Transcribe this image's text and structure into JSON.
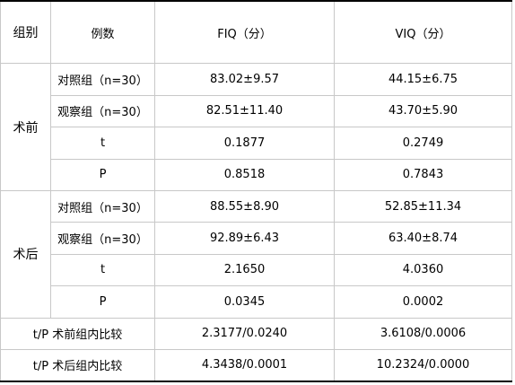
{
  "table": {
    "headers": {
      "group": "组别",
      "count": "例数",
      "fiq": "FIQ（分）",
      "viq": "VIQ（分）"
    },
    "sections": [
      {
        "name": "术前",
        "rows": [
          {
            "label": "对照组（n=30）",
            "fiq": "83.02±9.57",
            "viq": "44.15±6.75"
          },
          {
            "label": "观察组（n=30）",
            "fiq": "82.51±11.40",
            "viq": "43.70±5.90"
          },
          {
            "label": "t",
            "fiq": "0.1877",
            "viq": "0.2749"
          },
          {
            "label": "P",
            "fiq": "0.8518",
            "viq": "0.7843"
          }
        ]
      },
      {
        "name": "术后",
        "rows": [
          {
            "label": "对照组（n=30）",
            "fiq": "88.55±8.90",
            "viq": "52.85±11.34"
          },
          {
            "label": "观察组（n=30）",
            "fiq": "92.89±6.43",
            "viq": "63.40±8.74"
          },
          {
            "label": "t",
            "fiq": "2.1650",
            "viq": "4.0360"
          },
          {
            "label": "P",
            "fiq": "0.0345",
            "viq": "0.0002"
          }
        ]
      }
    ],
    "comparisons": [
      {
        "label": "t/P 术前组内比较",
        "fiq": "2.3177/0.0240",
        "viq": "3.6108/0.0006"
      },
      {
        "label": "t/P 术后组内比较",
        "fiq": "4.3438/0.0001",
        "viq": "10.2324/0.0000"
      }
    ]
  }
}
